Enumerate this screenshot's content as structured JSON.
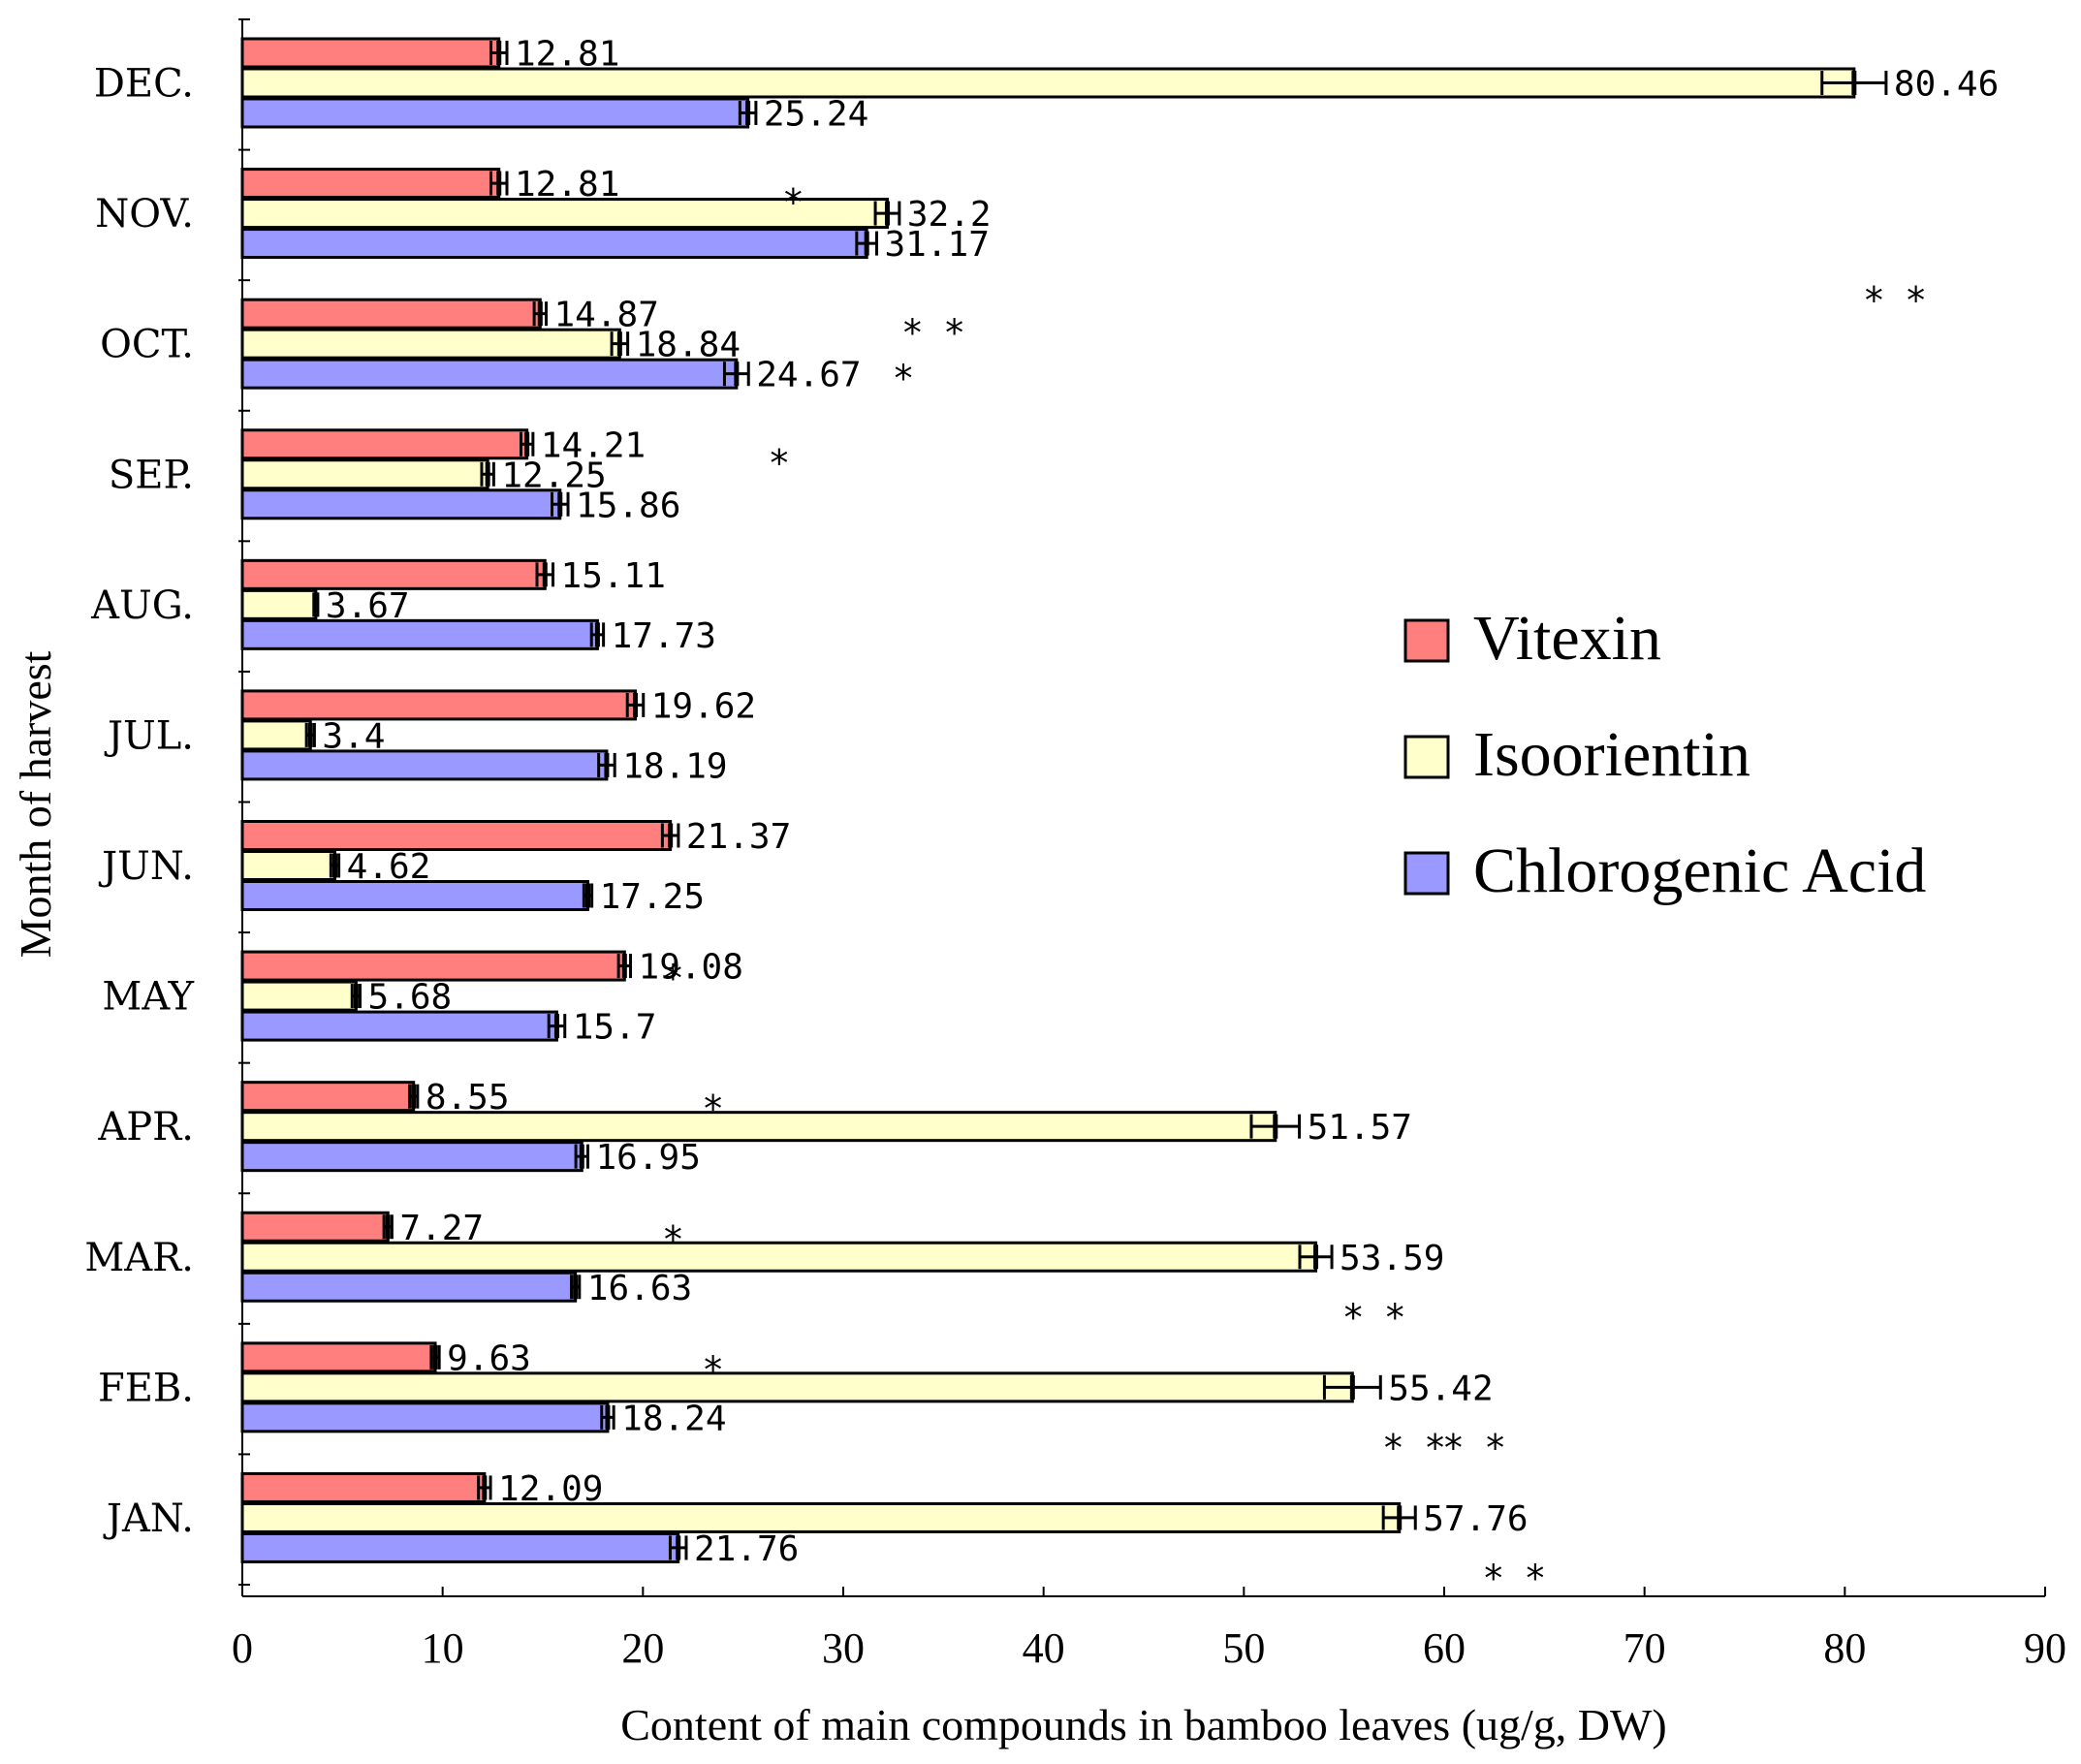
{
  "chart_data": {
    "type": "bar",
    "orientation": "horizontal",
    "title": "",
    "xlabel": "Content of main compounds in bamboo leaves (ug/g, DW)",
    "ylabel": "Month of harvest",
    "xlim": [
      0,
      90
    ],
    "xticks": [
      0,
      10,
      20,
      30,
      40,
      50,
      60,
      70,
      80,
      90
    ],
    "categories": [
      "JAN.",
      "FEB.",
      "MAR.",
      "APR.",
      "MAY",
      "JUN.",
      "JUL.",
      "AUG.",
      "SEP.",
      "OCT.",
      "NOV.",
      "DEC."
    ],
    "series": [
      {
        "name": "Vitexin",
        "color": "#ff7f7f",
        "values": [
          12.09,
          9.63,
          7.27,
          8.55,
          19.08,
          21.37,
          19.62,
          15.11,
          14.21,
          14.87,
          12.81,
          12.81
        ],
        "errors": [
          0.3,
          0.2,
          0.2,
          0.2,
          0.3,
          0.4,
          0.4,
          0.4,
          0.3,
          0.3,
          0.4,
          0.4
        ],
        "labels": [
          "12.09",
          "9.63",
          "7.27",
          "8.55",
          "19.08",
          "21.37",
          "19.62",
          "15.11",
          "14.21",
          "14.87",
          "12.81",
          "12.81"
        ]
      },
      {
        "name": "Isoorientin",
        "color": "#ffffcc",
        "values": [
          57.76,
          55.42,
          53.59,
          51.57,
          5.68,
          4.62,
          3.4,
          3.67,
          12.25,
          18.84,
          32.2,
          80.46
        ],
        "errors": [
          0.8,
          1.4,
          0.8,
          1.2,
          0.2,
          0.2,
          0.2,
          0.1,
          0.3,
          0.4,
          0.6,
          1.6
        ],
        "labels": [
          "57.76",
          "55.42",
          "53.59",
          "51.57",
          "5.68",
          "4.62",
          "3.4",
          "3.67",
          "12.25",
          "18.84",
          "32.2",
          "80.46"
        ]
      },
      {
        "name": "Chlorogenic Acid",
        "color": "#9999ff",
        "values": [
          21.76,
          18.24,
          16.63,
          16.95,
          15.7,
          17.25,
          18.19,
          17.73,
          15.86,
          24.67,
          31.17,
          25.24
        ],
        "errors": [
          0.4,
          0.3,
          0.2,
          0.3,
          0.4,
          0.2,
          0.4,
          0.3,
          0.4,
          0.6,
          0.5,
          0.4
        ],
        "labels": [
          "21.76",
          "18.24",
          "16.63",
          "16.95",
          "15.7",
          "17.25",
          "18.19",
          "17.73",
          "15.86",
          "24.67",
          "31.17",
          "25.24"
        ]
      }
    ],
    "significance_marks": [
      {
        "text": "* *",
        "x": 61.5,
        "month": "JAN.",
        "pos": 0.05
      },
      {
        "text": "* *",
        "x": 63.5,
        "month": "JAN.",
        "pos": 1.05
      },
      {
        "text": "* *",
        "x": 58.5,
        "month": "FEB.",
        "pos": 1.05
      },
      {
        "text": "* *",
        "x": 56.5,
        "month": "MAR.",
        "pos": 1.05
      },
      {
        "text": "*",
        "x": 21.5,
        "month": "APR.",
        "pos": 1.45
      },
      {
        "text": "*",
        "x": 23.5,
        "month": "JAN.",
        "pos": -0.55
      },
      {
        "text": "*",
        "x": 23.5,
        "month": "MAY",
        "pos": 1.45
      },
      {
        "text": "*",
        "x": 21.5,
        "month": "JUN.",
        "pos": 1.45
      },
      {
        "text": "*",
        "x": 26.8,
        "month": "SEP.",
        "pos": 0.5
      },
      {
        "text": "* *",
        "x": 34.5,
        "month": "OCT.",
        "pos": 0.5
      },
      {
        "text": "*",
        "x": 33.0,
        "month": "OCT.",
        "pos": 0.85
      },
      {
        "text": "*",
        "x": 27.5,
        "month": "NOV.",
        "pos": 0.5
      },
      {
        "text": "* *",
        "x": 82.5,
        "month": "NOV.",
        "pos": 1.25
      }
    ],
    "legend": [
      "Vitexin",
      "Isoorientin",
      "Chlorogenic Acid"
    ],
    "legend_position": "right",
    "grid": false
  }
}
